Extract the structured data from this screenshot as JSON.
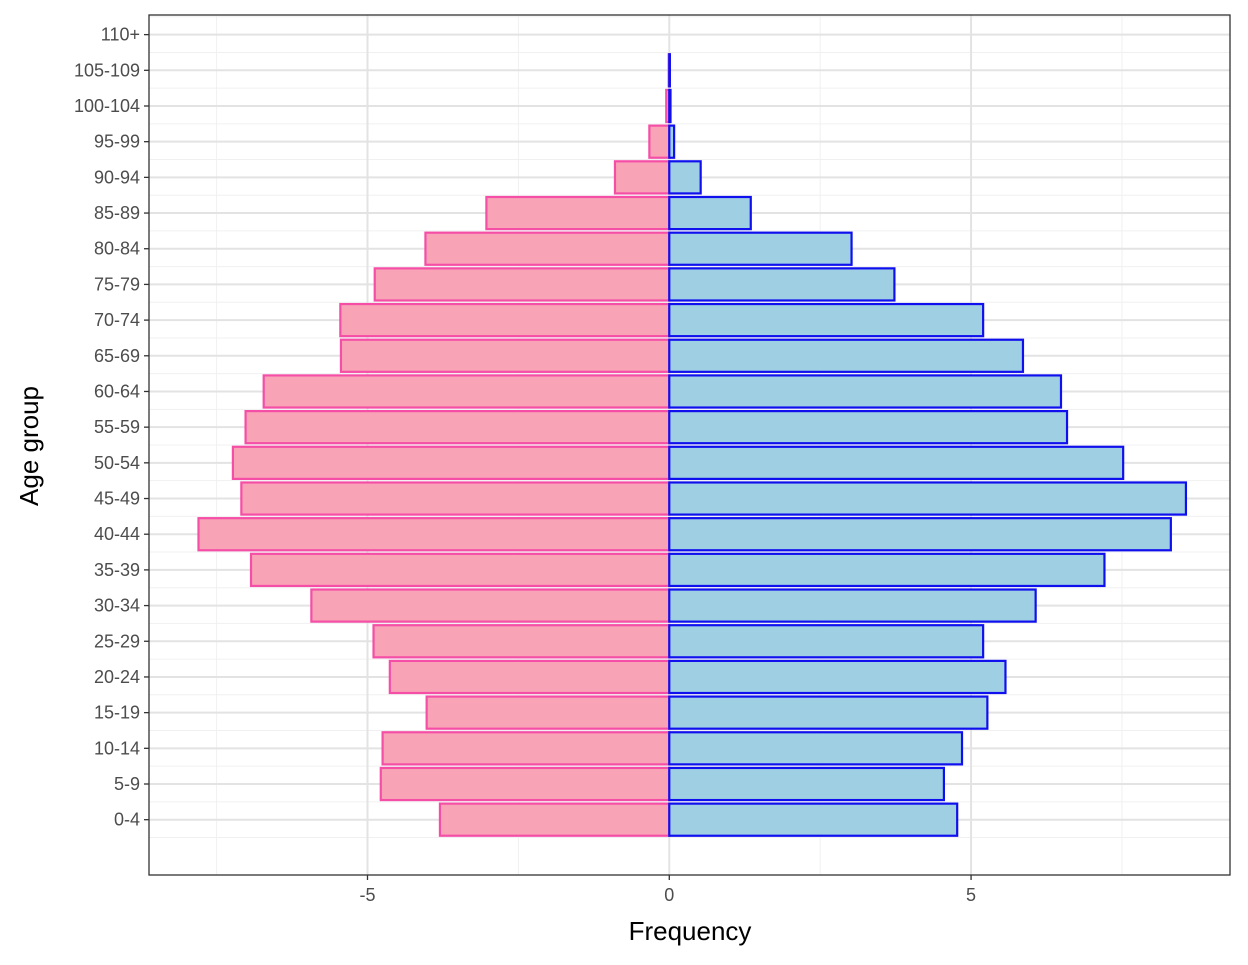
{
  "chart_data": {
    "type": "bar",
    "orientation": "horizontal",
    "xlabel": "Frequency",
    "ylabel": "Age group",
    "xlim": [
      -8.62,
      9.29
    ],
    "x_ticks": [
      -5,
      0,
      5
    ],
    "x_tick_labels": [
      "-5",
      "0",
      "5"
    ],
    "grid": true,
    "categories": [
      "0-4",
      "5-9",
      "10-14",
      "15-19",
      "20-24",
      "25-29",
      "30-34",
      "35-39",
      "40-44",
      "45-49",
      "50-54",
      "55-59",
      "60-64",
      "65-69",
      "70-74",
      "75-79",
      "80-84",
      "85-89",
      "90-94",
      "95-99",
      "100-104",
      "105-109",
      "110+"
    ],
    "series": [
      {
        "fill": "#f9a3b6",
        "stroke": "#f54ea6",
        "values": [
          -3.8,
          -4.78,
          -4.75,
          -4.02,
          -4.63,
          -4.9,
          -5.93,
          -6.93,
          -7.8,
          -7.09,
          -7.23,
          -7.02,
          -6.72,
          -5.44,
          -5.45,
          -4.88,
          -4.04,
          -3.03,
          -0.9,
          -0.33,
          -0.05,
          -0.01,
          0
        ]
      },
      {
        "fill": "#9ecfe2",
        "stroke": "#1010ee",
        "values": [
          4.77,
          4.55,
          4.85,
          5.27,
          5.57,
          5.2,
          6.07,
          7.21,
          8.31,
          8.56,
          7.52,
          6.59,
          6.49,
          5.86,
          5.2,
          3.73,
          3.02,
          1.35,
          0.52,
          0.08,
          0.02,
          0.01,
          0
        ]
      }
    ]
  }
}
